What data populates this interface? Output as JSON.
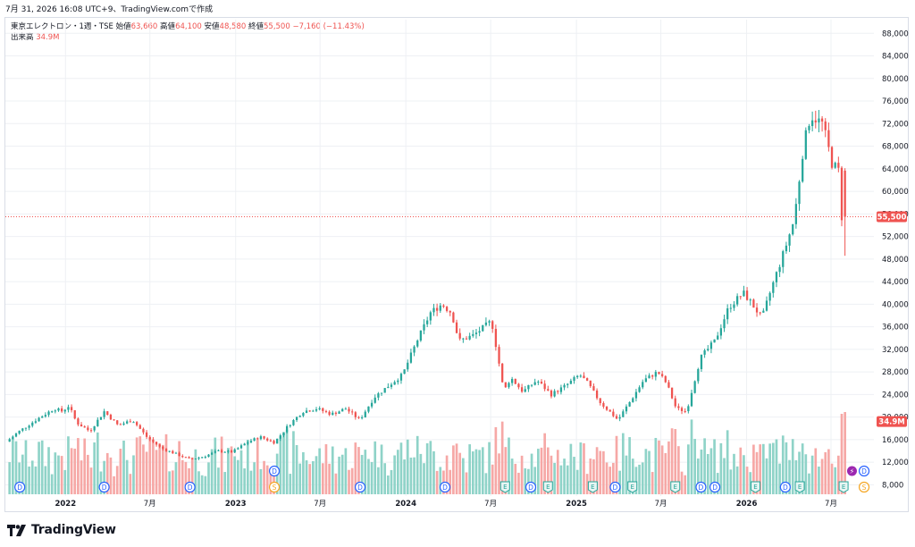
{
  "header": {
    "timestamp": "7月 31, 2026 16:08 UTC+9、TradingView.comで作成",
    "symbol": "東京エレクトロン・1週・TSE",
    "open_label": "始値",
    "open_value": "63,660",
    "high_label": "高値",
    "high_value": "64,100",
    "low_label": "安値",
    "low_value": "48,580",
    "close_label": "終値",
    "close_value": "55,500",
    "change": "−7,160 (−11.43%)",
    "volume_label": "出来高",
    "volume_value": "34.9M"
  },
  "brand": {
    "name": "TradingView"
  },
  "colors": {
    "up": "#26a69a",
    "down": "#ef5350",
    "vol_up": "#8fd3c8",
    "vol_down": "#f6a8a6",
    "grid": "#eef0f4",
    "axis_text": "#131722",
    "dividend": "#2962ff",
    "earnings": "#26a69a",
    "split": "#f5a623",
    "flash": "#9c27b0"
  },
  "chart_data": {
    "type": "candlestick",
    "title": "東京エレクトロン・1週・TSE",
    "y_axis": {
      "min": 6000,
      "max": 90000,
      "ticks": [
        8000,
        12000,
        16000,
        20000,
        24000,
        28000,
        32000,
        36000,
        40000,
        44000,
        48000,
        52000,
        56000,
        60000,
        64000,
        68000,
        72000,
        76000,
        80000,
        84000,
        88000
      ],
      "tick_labels": [
        "8,000",
        "12,000",
        "16,000",
        "20,000",
        "24,000",
        "28,000",
        "32,000",
        "36,000",
        "40,000",
        "44,000",
        "48,000",
        "52,000",
        "56,000",
        "60,000",
        "64,000",
        "68,000",
        "72,000",
        "76,000",
        "80,000",
        "84,000",
        "88,000"
      ],
      "grid": true,
      "side": "right"
    },
    "x_axis": {
      "start": "2021-09",
      "end": "2026-08",
      "tick_labels": [
        {
          "date": "2022-01",
          "label": "2022"
        },
        {
          "date": "2022-07",
          "label": "7月"
        },
        {
          "date": "2023-01",
          "label": "2023"
        },
        {
          "date": "2023-07",
          "label": "7月"
        },
        {
          "date": "2024-01",
          "label": "2024"
        },
        {
          "date": "2024-07",
          "label": "7月"
        },
        {
          "date": "2025-01",
          "label": "2025"
        },
        {
          "date": "2025-07",
          "label": "7月"
        },
        {
          "date": "2026-01",
          "label": "2026"
        },
        {
          "date": "2026-07",
          "label": "7月"
        }
      ]
    },
    "price_series": {
      "name": "東京エレクトロン",
      "keypoints": [
        [
          "2021-09-01",
          15500
        ],
        [
          "2021-10-01",
          17500
        ],
        [
          "2021-11-15",
          20000
        ],
        [
          "2021-12-15",
          21500
        ],
        [
          "2022-01-01",
          21000
        ],
        [
          "2022-01-15",
          22000
        ],
        [
          "2022-02-01",
          19000
        ],
        [
          "2022-03-01",
          17500
        ],
        [
          "2022-04-01",
          21000
        ],
        [
          "2022-05-01",
          18500
        ],
        [
          "2022-06-01",
          19500
        ],
        [
          "2022-07-01",
          16500
        ],
        [
          "2022-08-01",
          14500
        ],
        [
          "2022-09-01",
          13500
        ],
        [
          "2022-10-01",
          12500
        ],
        [
          "2022-11-01",
          13000
        ],
        [
          "2022-12-01",
          14000
        ],
        [
          "2023-01-01",
          13800
        ],
        [
          "2023-02-01",
          15500
        ],
        [
          "2023-03-01",
          16500
        ],
        [
          "2023-04-01",
          15500
        ],
        [
          "2023-05-01",
          18500
        ],
        [
          "2023-06-01",
          21000
        ],
        [
          "2023-07-01",
          21500
        ],
        [
          "2023-08-01",
          20500
        ],
        [
          "2023-09-01",
          21500
        ],
        [
          "2023-10-01",
          19500
        ],
        [
          "2023-11-01",
          23500
        ],
        [
          "2023-12-01",
          25500
        ],
        [
          "2024-01-01",
          27500
        ],
        [
          "2024-02-01",
          33500
        ],
        [
          "2024-03-01",
          38500
        ],
        [
          "2024-03-25",
          40000
        ],
        [
          "2024-04-15",
          38500
        ],
        [
          "2024-05-01",
          33500
        ],
        [
          "2024-06-01",
          34500
        ],
        [
          "2024-07-10",
          37000
        ],
        [
          "2024-07-25",
          30000
        ],
        [
          "2024-08-05",
          24500
        ],
        [
          "2024-08-20",
          27000
        ],
        [
          "2024-09-15",
          24500
        ],
        [
          "2024-10-15",
          26500
        ],
        [
          "2024-11-15",
          24000
        ],
        [
          "2024-12-15",
          25500
        ],
        [
          "2025-01-15",
          27500
        ],
        [
          "2025-02-01",
          26000
        ],
        [
          "2025-03-01",
          22500
        ],
        [
          "2025-04-07",
          19500
        ],
        [
          "2025-05-01",
          22500
        ],
        [
          "2025-06-01",
          26500
        ],
        [
          "2025-07-01",
          28000
        ],
        [
          "2025-07-20",
          26000
        ],
        [
          "2025-08-10",
          21500
        ],
        [
          "2025-09-01",
          21000
        ],
        [
          "2025-10-01",
          30500
        ],
        [
          "2025-11-01",
          33500
        ],
        [
          "2025-12-01",
          39500
        ],
        [
          "2026-01-01",
          42000
        ],
        [
          "2026-01-20",
          40000
        ],
        [
          "2026-02-10",
          37500
        ],
        [
          "2026-03-01",
          42500
        ],
        [
          "2026-04-01",
          50000
        ],
        [
          "2026-04-20",
          55000
        ],
        [
          "2026-05-10",
          68000
        ],
        [
          "2026-05-25",
          73500
        ],
        [
          "2026-06-20",
          72000
        ],
        [
          "2026-07-10",
          65000
        ],
        [
          "2026-07-24",
          63660
        ],
        [
          "2026-07-31",
          55500
        ]
      ],
      "last": {
        "date": "2026-07-31",
        "open": 63660,
        "high": 64100,
        "low": 48580,
        "close": 55500
      },
      "last_label": "55,500"
    },
    "volume_series": {
      "name": "出来高",
      "last_label": "34.9M"
    },
    "event_markers": [
      {
        "date": "2021-09-25",
        "type": "D"
      },
      {
        "date": "2022-03-25",
        "type": "D"
      },
      {
        "date": "2022-09-25",
        "type": "D"
      },
      {
        "date": "2023-03-25",
        "type": "D"
      },
      {
        "date": "2023-03-25",
        "type": "S"
      },
      {
        "date": "2023-09-25",
        "type": "D"
      },
      {
        "date": "2024-03-25",
        "type": "D"
      },
      {
        "date": "2024-08-01",
        "type": "E"
      },
      {
        "date": "2024-09-25",
        "type": "D"
      },
      {
        "date": "2024-11-01",
        "type": "E"
      },
      {
        "date": "2025-02-05",
        "type": "E"
      },
      {
        "date": "2025-03-25",
        "type": "D"
      },
      {
        "date": "2025-05-01",
        "type": "E"
      },
      {
        "date": "2025-08-01",
        "type": "E"
      },
      {
        "date": "2025-09-25",
        "type": "D"
      },
      {
        "date": "2025-10-25",
        "type": "D"
      },
      {
        "date": "2026-01-20",
        "type": "E"
      },
      {
        "date": "2026-03-25",
        "type": "D"
      },
      {
        "date": "2026-04-25",
        "type": "E"
      },
      {
        "date": "2026-07-28",
        "type": "E"
      },
      {
        "date": "2026-08-15",
        "type": "flash"
      },
      {
        "date": "2026-09-10",
        "type": "D"
      },
      {
        "date": "2026-09-10",
        "type": "S"
      }
    ]
  }
}
